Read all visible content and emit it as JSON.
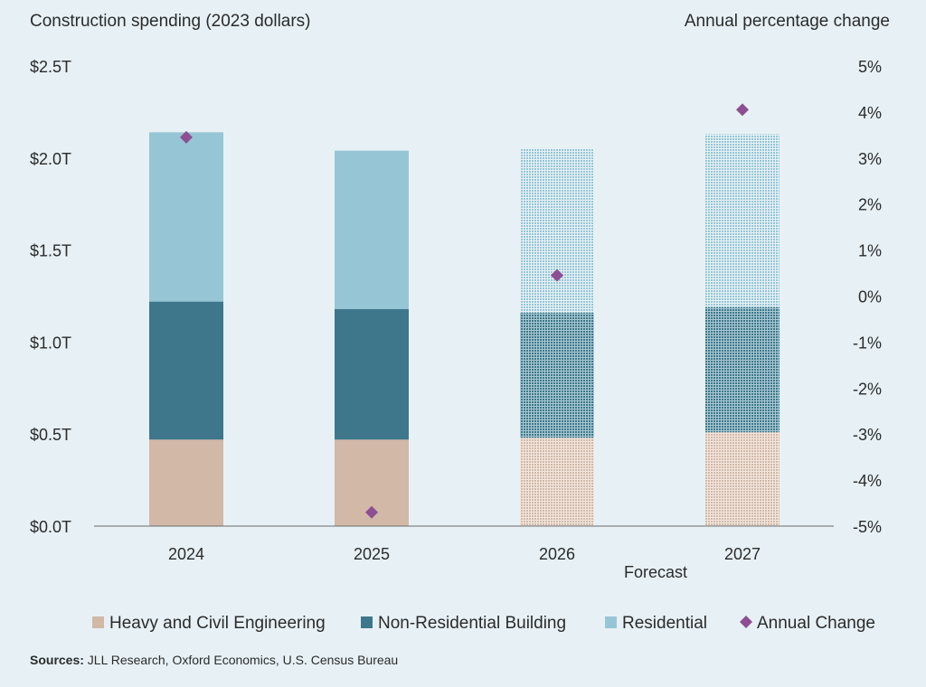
{
  "chart_data": {
    "type": "bar",
    "stacked": true,
    "left_axis_title": "Construction spending (2023 dollars)",
    "right_axis_title": "Annual percentage change",
    "categories": [
      "2024",
      "2025",
      "2026",
      "2027"
    ],
    "forecast_label": "Forecast",
    "forecast_categories": [
      "2026",
      "2027"
    ],
    "y_left": {
      "min": 0,
      "max": 2.5,
      "ticks": [
        0,
        0.5,
        1.0,
        1.5,
        2.0,
        2.5
      ],
      "tick_labels": [
        "$0.0T",
        "$0.5T",
        "$1.0T",
        "$1.5T",
        "$2.0T",
        "$2.5T"
      ]
    },
    "y_right": {
      "min": -5,
      "max": 5,
      "ticks": [
        -5,
        -4,
        -3,
        -2,
        -1,
        0,
        1,
        2,
        3,
        4,
        5
      ],
      "tick_labels": [
        "-5%",
        "-4%",
        "-3%",
        "-2%",
        "-1%",
        "0%",
        "1%",
        "2%",
        "3%",
        "4%",
        "5%"
      ]
    },
    "series": [
      {
        "name": "Heavy and Civil Engineering",
        "color": "#d1b8a7",
        "values": [
          0.47,
          0.47,
          0.48,
          0.51
        ]
      },
      {
        "name": "Non-Residential Building",
        "color": "#3e778b",
        "values": [
          0.75,
          0.71,
          0.68,
          0.68
        ]
      },
      {
        "name": "Residential",
        "color": "#96c6d6",
        "values": [
          0.92,
          0.86,
          0.89,
          0.94
        ]
      }
    ],
    "annual_change": {
      "name": "Annual Change",
      "color": "#8d4e94",
      "axis": "right",
      "values": [
        3.45,
        -4.7,
        0.45,
        4.05
      ]
    },
    "grid": false,
    "legend_position": "bottom"
  },
  "sources": {
    "label": "Sources:",
    "text": " JLL Research, Oxford Economics, U.S. Census Bureau"
  }
}
